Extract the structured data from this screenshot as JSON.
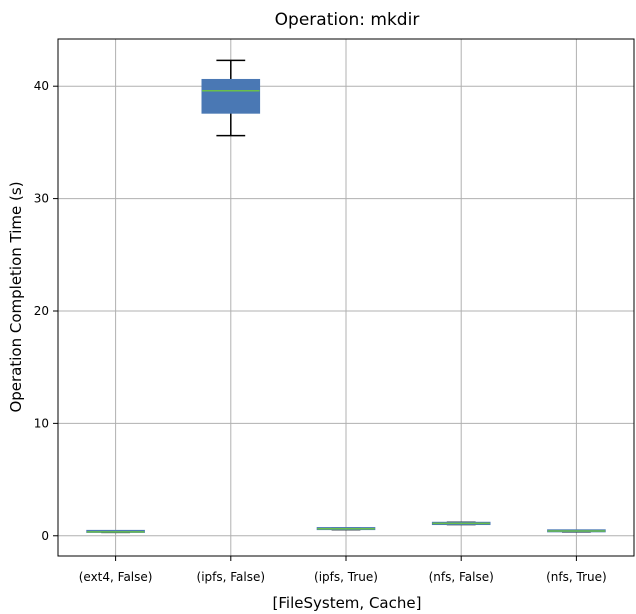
{
  "chart_data": {
    "type": "box",
    "title": "Operation: mkdir",
    "xlabel": "[FileSystem, Cache]",
    "ylabel": "Operation Completion Time (s)",
    "ylim": [
      -1.8,
      44.2
    ],
    "yticks": [
      0,
      10,
      20,
      30,
      40
    ],
    "grid": true,
    "categories": [
      "(ext4, False)",
      "(ipfs, False)",
      "(ipfs, True)",
      "(nfs, False)",
      "(nfs, True)"
    ],
    "boxes": [
      {
        "category": "(ext4, False)",
        "whisker_low": 0.3,
        "q1": 0.3,
        "median": 0.35,
        "q3": 0.4,
        "whisker_high": 0.4
      },
      {
        "category": "(ipfs, False)",
        "whisker_low": 35.6,
        "q1": 37.6,
        "median": 39.6,
        "q3": 40.6,
        "whisker_high": 42.3
      },
      {
        "category": "(ipfs, True)",
        "whisker_low": 0.55,
        "q1": 0.55,
        "median": 0.62,
        "q3": 0.68,
        "whisker_high": 0.68
      },
      {
        "category": "(nfs, False)",
        "whisker_low": 1.0,
        "q1": 1.0,
        "median": 1.1,
        "q3": 1.2,
        "whisker_high": 1.2
      },
      {
        "category": "(nfs, True)",
        "whisker_low": 0.35,
        "q1": 0.35,
        "median": 0.42,
        "q3": 0.48,
        "whisker_high": 0.48
      }
    ],
    "colors": {
      "box": "#4a78b4",
      "median": "#6abf4b",
      "whisker": "#000000",
      "grid": "#b0b0b0"
    }
  }
}
